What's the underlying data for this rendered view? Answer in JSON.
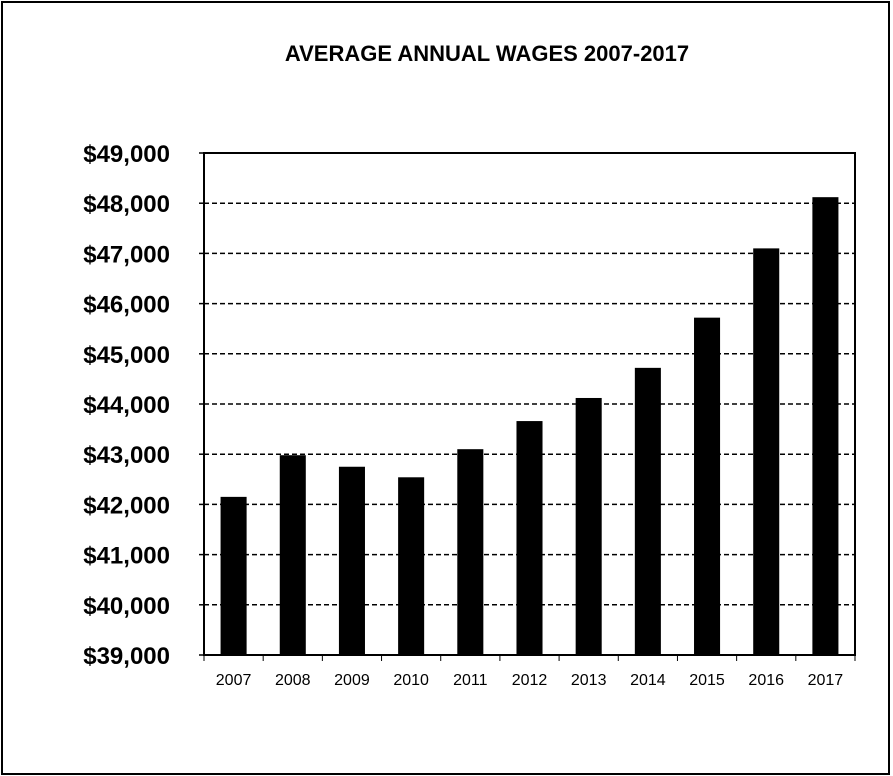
{
  "chart_data": {
    "type": "bar",
    "title": "AVERAGE ANNUAL WAGES 2007-2017",
    "xlabel": "",
    "ylabel": "",
    "categories": [
      "2007",
      "2008",
      "2009",
      "2010",
      "2011",
      "2012",
      "2013",
      "2014",
      "2015",
      "2016",
      "2017"
    ],
    "values": [
      42150,
      42980,
      42750,
      42540,
      43100,
      43660,
      44120,
      44720,
      45720,
      47100,
      48120
    ],
    "ylim": [
      39000,
      49000
    ],
    "yticks": [
      39000,
      40000,
      41000,
      42000,
      43000,
      44000,
      45000,
      46000,
      47000,
      48000,
      49000
    ],
    "ytick_labels": [
      "$39,000",
      "$40,000",
      "$41,000",
      "$42,000",
      "$43,000",
      "$44,000",
      "$45,000",
      "$46,000",
      "$47,000",
      "$48,000",
      "$49,000"
    ],
    "grid": "horizontal-dashed",
    "legend": "none",
    "bar_color": "#000000"
  }
}
